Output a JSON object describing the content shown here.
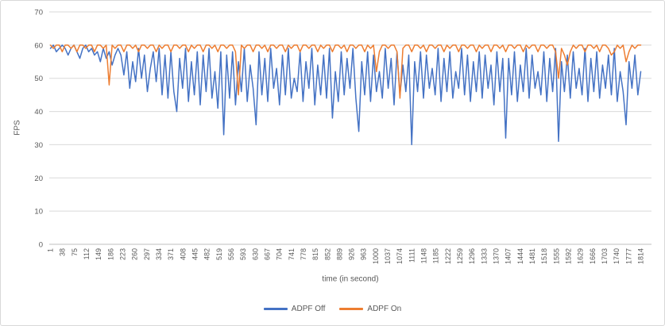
{
  "colors": {
    "series_blue": "#4472C4",
    "series_orange": "#ED7D31",
    "gridline": "#D9D9D9",
    "axis_line": "#BFBFBF",
    "tick_text": "#595959",
    "frame_border": "#D9D9D9",
    "background": "#FFFFFF"
  },
  "chart_data": {
    "type": "line",
    "xlabel": "time (in second)",
    "ylabel": "FPS",
    "x_range": [
      1,
      1814
    ],
    "ylim": [
      0,
      70
    ],
    "grid": "horizontal-only",
    "legend_position": "bottom-center",
    "y_axis": {
      "title": "FPS",
      "tick_labels": [
        0,
        10,
        20,
        30,
        40,
        50,
        60,
        70
      ],
      "tick_step": 10
    },
    "x_axis": {
      "title": "time (in second)",
      "tick_step": 37,
      "tick_labels": [
        "1",
        "38",
        "75",
        "112",
        "149",
        "186",
        "223",
        "260",
        "297",
        "334",
        "371",
        "408",
        "445",
        "482",
        "519",
        "556",
        "593",
        "630",
        "667",
        "704",
        "741",
        "778",
        "815",
        "852",
        "889",
        "926",
        "963",
        "1000",
        "1037",
        "1074",
        "1111",
        "1148",
        "1185",
        "1222",
        "1259",
        "1296",
        "1333",
        "1370",
        "1407",
        "1444",
        "1481",
        "1518",
        "1555",
        "1592",
        "1629",
        "1666",
        "1703",
        "1740",
        "1777",
        "1814"
      ]
    },
    "legend": {
      "entries": [
        {
          "label": "ADPF Off",
          "color": "#4472C4"
        },
        {
          "label": "ADPF On",
          "color": "#ED7D31"
        }
      ]
    },
    "sampling_note_t_uniform": [
      1,
      1814
    ],
    "series": [
      {
        "name": "ADPF Off",
        "color": "#4472C4",
        "values": [
          59,
          60,
          58,
          59,
          60,
          59,
          57,
          59,
          60,
          58,
          56,
          59,
          60,
          58,
          59,
          57,
          58,
          55,
          59,
          56,
          58,
          54,
          57,
          59,
          57,
          51,
          58,
          47,
          55,
          49,
          59,
          50,
          57,
          46,
          53,
          58,
          49,
          59,
          45,
          57,
          44,
          58,
          46,
          40,
          56,
          47,
          59,
          43,
          55,
          45,
          58,
          42,
          57,
          46,
          59,
          44,
          52,
          41,
          58,
          33,
          57,
          44,
          58,
          42,
          55,
          46,
          59,
          43,
          54,
          47,
          36,
          58,
          45,
          56,
          43,
          59,
          47,
          53,
          42,
          57,
          45,
          59,
          44,
          50,
          46,
          58,
          43,
          55,
          47,
          59,
          42,
          54,
          45,
          57,
          44,
          59,
          38,
          52,
          43,
          58,
          45,
          56,
          47,
          59,
          44,
          34,
          55,
          45,
          58,
          43,
          57,
          46,
          52,
          44,
          59,
          47,
          56,
          42,
          58,
          45,
          54,
          46,
          57,
          30,
          55,
          46,
          58,
          44,
          57,
          47,
          53,
          45,
          59,
          43,
          56,
          46,
          58,
          44,
          52,
          47,
          59,
          45,
          57,
          43,
          55,
          46,
          58,
          44,
          57,
          47,
          54,
          42,
          58,
          46,
          56,
          32,
          56,
          45,
          58,
          43,
          54,
          46,
          59,
          44,
          57,
          47,
          52,
          45,
          58,
          43,
          56,
          46,
          59,
          31,
          55,
          46,
          57,
          44,
          58,
          47,
          53,
          45,
          59,
          43,
          56,
          46,
          58,
          44,
          54,
          47,
          57,
          45,
          59,
          43,
          52,
          46,
          36,
          55,
          47,
          57,
          45,
          52
        ]
      },
      {
        "name": "ADPF On",
        "color": "#ED7D31",
        "values": [
          60,
          59,
          60,
          60,
          58,
          60,
          60,
          59,
          60,
          58,
          60,
          60,
          59,
          60,
          60,
          58,
          60,
          60,
          59,
          60,
          48,
          60,
          59,
          60,
          60,
          58,
          60,
          60,
          59,
          60,
          58,
          60,
          60,
          59,
          60,
          60,
          58,
          60,
          59,
          60,
          60,
          58,
          60,
          60,
          59,
          60,
          60,
          58,
          60,
          59,
          60,
          60,
          58,
          60,
          60,
          59,
          60,
          58,
          60,
          60,
          59,
          60,
          60,
          58,
          45,
          60,
          59,
          60,
          60,
          58,
          60,
          60,
          59,
          60,
          58,
          60,
          60,
          59,
          60,
          60,
          58,
          60,
          59,
          60,
          60,
          58,
          60,
          60,
          59,
          60,
          60,
          58,
          60,
          59,
          60,
          60,
          58,
          60,
          60,
          59,
          60,
          58,
          60,
          60,
          59,
          60,
          60,
          58,
          60,
          59,
          60,
          52,
          58,
          60,
          60,
          59,
          60,
          60,
          58,
          44,
          59,
          60,
          60,
          58,
          60,
          60,
          59,
          60,
          58,
          60,
          60,
          59,
          60,
          60,
          58,
          60,
          59,
          60,
          60,
          58,
          60,
          60,
          59,
          60,
          60,
          58,
          60,
          59,
          60,
          60,
          58,
          60,
          60,
          59,
          60,
          58,
          60,
          60,
          59,
          60,
          60,
          58,
          60,
          59,
          60,
          60,
          58,
          60,
          60,
          59,
          60,
          60,
          58,
          50,
          59,
          57,
          54,
          58,
          60,
          59,
          60,
          60,
          58,
          60,
          60,
          59,
          60,
          58,
          60,
          60,
          59,
          57,
          58,
          60,
          59,
          60,
          55,
          58,
          60,
          59,
          60,
          60
        ]
      }
    ]
  }
}
